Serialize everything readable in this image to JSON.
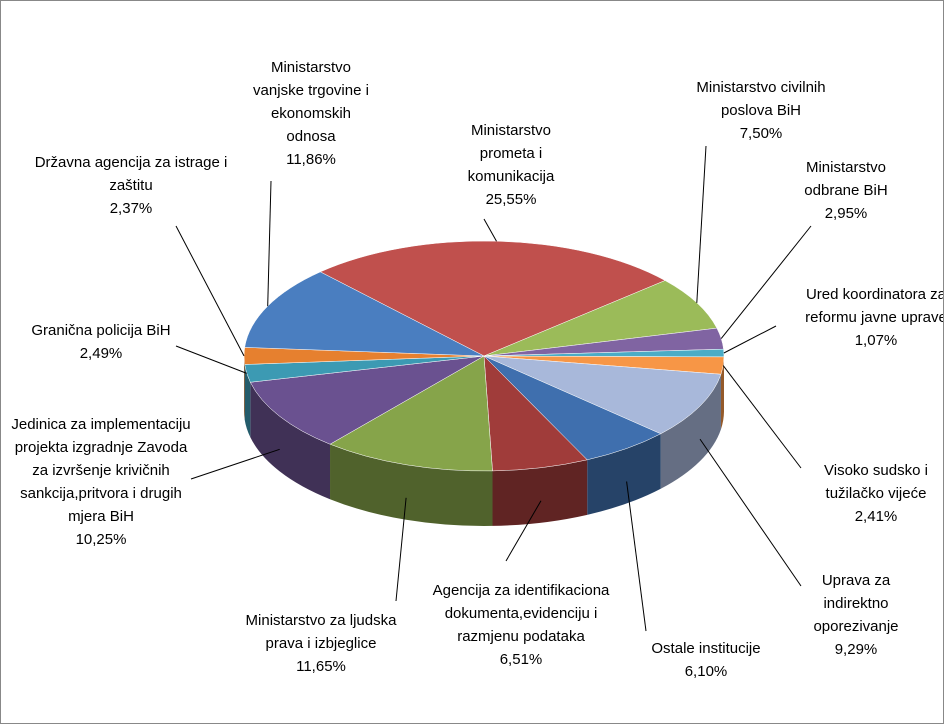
{
  "chart_data": {
    "type": "pie3d",
    "categories": [
      "Ministarstvo prometa i komunikacija",
      "Ministarstvo civilnih poslova BiH",
      "Ministarstvo odbrane BiH",
      "Ured koordinatora za reformu javne uprave",
      "Visoko sudsko i tužilačko vijeće",
      "Uprava za indirektno oporezivanje",
      "Ostale institucije",
      "Agencija za identifikaciona dokumenta,evidenciju i razmjenu podataka",
      "Ministarstvo za ljudska prava i izbjeglice",
      "Jedinica za implementaciju projekta izgradnje Zavoda za izvršenje krivičnih sankcija,pritvora i drugih mjera BiH",
      "Granična policija BiH",
      "Državna agencija za istrage i zaštitu",
      "Ministarstvo vanjske trgovine i ekonomskih odnosa"
    ],
    "values": [
      25.55,
      7.5,
      2.95,
      1.07,
      2.41,
      9.29,
      6.1,
      6.51,
      11.65,
      10.25,
      2.49,
      2.37,
      11.86
    ],
    "value_labels": [
      "25,55%",
      "7,50%",
      "2,95%",
      "1,07%",
      "2,41%",
      "9,29%",
      "6,10%",
      "6,51%",
      "11,65%",
      "10,25%",
      "2,49%",
      "2,37%",
      "11,86%"
    ],
    "colors": [
      "#c0504d",
      "#9bbb59",
      "#8064a2",
      "#4bacc6",
      "#f79646",
      "#a8b8da",
      "#3f6fae",
      "#a03c3a",
      "#86a44a",
      "#6a5190",
      "#3c9ab3",
      "#e6802f",
      "#4a7ec0"
    ]
  }
}
